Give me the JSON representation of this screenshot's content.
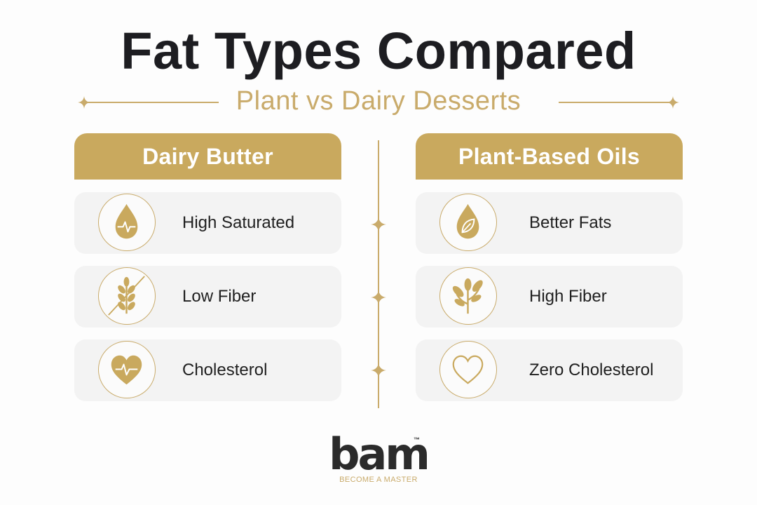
{
  "title": "Fat Types Compared",
  "subtitle": "Plant vs Dairy Desserts",
  "columns": [
    {
      "header": "Dairy Butter",
      "items": [
        {
          "label": "High Saturated",
          "icon": "drop-pulse-icon"
        },
        {
          "label": "Low Fiber",
          "icon": "crossed-wheat-icon"
        },
        {
          "label": "Cholesterol",
          "icon": "heart-pulse-icon"
        }
      ]
    },
    {
      "header": "Plant-Based Oils",
      "items": [
        {
          "label": "Better Fats",
          "icon": "drop-leaf-icon"
        },
        {
          "label": "High Fiber",
          "icon": "sprout-icon"
        },
        {
          "label": "Zero Cholesterol",
          "icon": "heart-outline-icon"
        }
      ]
    }
  ],
  "logo": {
    "wordmark": "bam",
    "trademark": "™",
    "tagline": "BECOME A MASTER"
  },
  "colors": {
    "gold": "#c9a95e",
    "dark": "#1d1d21",
    "card": "#f3f3f3"
  }
}
